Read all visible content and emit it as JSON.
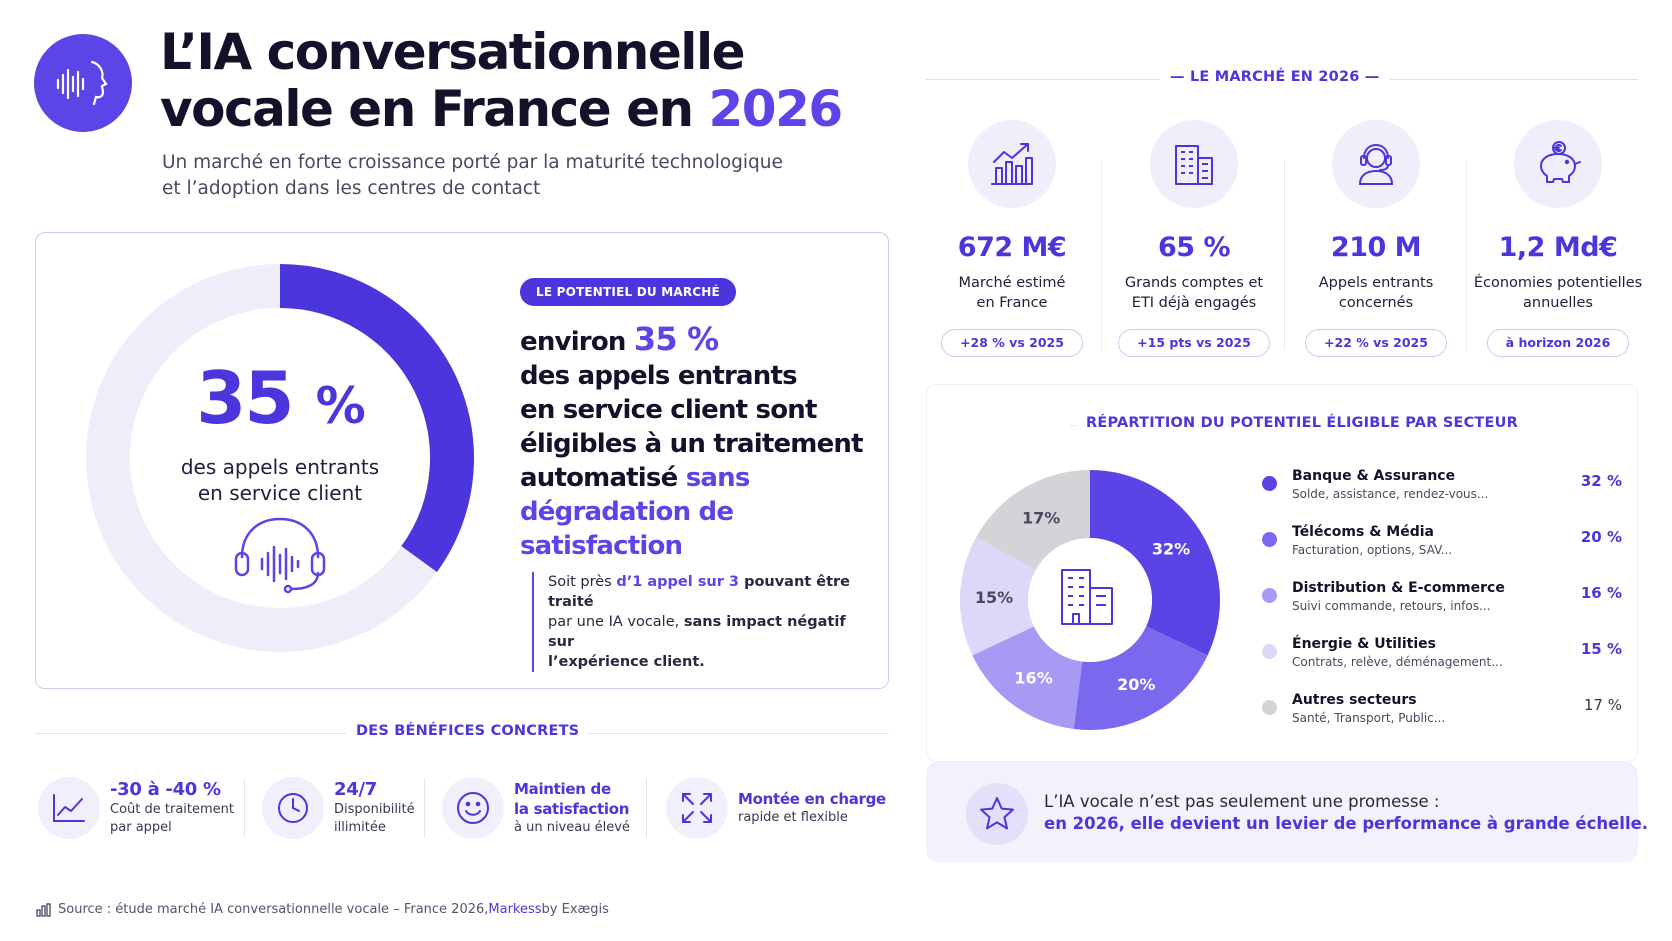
{
  "header": {
    "title_line1": "L’IA conversationnelle",
    "title_line2_prefix": "vocale en France en ",
    "title_year": "2026",
    "subtitle_line1": "Un marché en forte croissance porté par la maturité technologique",
    "subtitle_line2": "et l’adoption dans les centres de contact",
    "logo_icon": "voice-face-icon"
  },
  "potential": {
    "share_pct": 35,
    "big_value": "35",
    "big_symbol": "%",
    "caption_line1": "des appels entrants",
    "caption_line2": "en service client",
    "pill": "LE POTENTIEL DU MARCHÉ",
    "text_l1_a": "environ ",
    "text_l1_b": "35 %",
    "text_l2": "des appels entrants",
    "text_l3": "en service client sont",
    "text_l4": "éligibles à un traitement",
    "text_l5_a": "automatisé ",
    "text_l5_b": "sans",
    "text_l6": "dégradation de satisfaction",
    "quote_a": "Soit près ",
    "quote_b": "d’1 appel sur 3",
    "quote_c": " pouvant être traité",
    "quote_d": "par une IA vocale, ",
    "quote_e": "sans impact négatif sur",
    "quote_f": "l’expérience client."
  },
  "benefits": {
    "heading": "DES BÉNÉFICES CONCRETS",
    "items": [
      {
        "icon": "trend-chart-icon",
        "title": "-30 à -40 %",
        "sub1": "Coût de traitement",
        "sub2": "par appel"
      },
      {
        "icon": "clock-icon",
        "title": "24/7",
        "sub1": "Disponibilité",
        "sub2": "illimitée"
      },
      {
        "icon": "smiley-icon",
        "title1": "Maintien de",
        "title2": "la satisfaction",
        "sub1": "à un niveau élevé"
      },
      {
        "icon": "expand-arrows-icon",
        "title": "Montée en charge",
        "sub1": "rapide et flexible"
      }
    ]
  },
  "source": {
    "prefix": "Source : étude marché IA conversationnelle vocale – France 2026, ",
    "brand": "Markess",
    "suffix": " by Exægis"
  },
  "market": {
    "heading": "LE MARCHÉ EN 2026",
    "kpis": [
      {
        "icon": "chart-growth-icon",
        "value": "672 M€",
        "label1": "Marché estimé",
        "label2": "en France",
        "pill": "+28 % vs 2025"
      },
      {
        "icon": "buildings-icon",
        "value": "65 %",
        "label1": "Grands comptes et",
        "label2": "ETI déjà engagés",
        "pill": "+15 pts vs 2025"
      },
      {
        "icon": "agent-headset-icon",
        "value": "210 M",
        "label1": "Appels entrants",
        "label2": "concernés",
        "pill": "+22 % vs 2025"
      },
      {
        "icon": "piggy-bank-icon",
        "value": "1,2 Md€",
        "label1": "Économies potentielles",
        "label2": "annuelles",
        "pill": "à horizon 2026"
      }
    ]
  },
  "sectors": {
    "heading": "RÉPARTITION DU POTENTIEL ÉLIGIBLE PAR SECTEUR",
    "center_icon": "building-icon"
  },
  "chart_data": {
    "type": "pie",
    "title": "RÉPARTITION DU POTENTIEL ÉLIGIBLE PAR SECTEUR",
    "categories": [
      "Banque & Assurance",
      "Télécoms & Média",
      "Distribution & E-commerce",
      "Énergie & Utilities",
      "Autres secteurs"
    ],
    "descriptions": [
      "Solde, assistance, rendez-vous...",
      "Facturation, options, SAV...",
      "Suivi commande, retours, infos...",
      "Contrats, relève, déménagement...",
      "Santé, Transport, Public..."
    ],
    "values": [
      32,
      20,
      16,
      15,
      17
    ],
    "value_labels": [
      "32 %",
      "20 %",
      "16 %",
      "15 %",
      "17 %"
    ],
    "slice_labels": [
      "32%",
      "20%",
      "16%",
      "15%",
      "17%"
    ],
    "colors": [
      "#5a44e6",
      "#7a68ef",
      "#a69af4",
      "#dcd8fa",
      "#d4d4d8"
    ]
  },
  "promise": {
    "icon": "star-icon",
    "line1": "L’IA vocale n’est pas seulement une promesse :",
    "line2": "en 2026, elle devient un levier de performance à grande échelle."
  }
}
